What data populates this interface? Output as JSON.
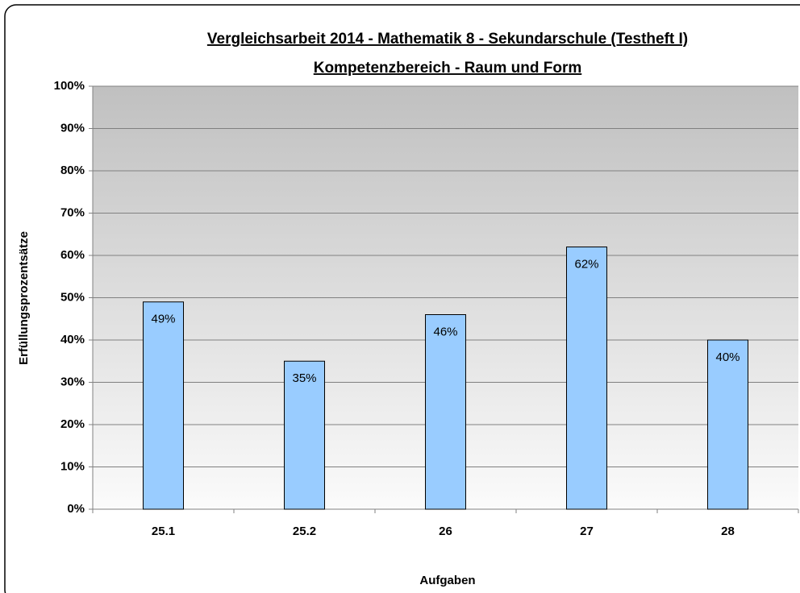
{
  "chart_data": {
    "type": "bar",
    "title": "Vergleichsarbeit 2014 - Mathematik 8 - Sekundarschule (Testheft I)",
    "subtitle": "Kompetenzbereich - Raum und Form",
    "x_label": "Aufgaben",
    "y_label": "Erfüllungsprozentsätze",
    "categories": [
      "25.1",
      "25.2",
      "26",
      "27",
      "28"
    ],
    "values": [
      49,
      35,
      46,
      62,
      40
    ],
    "value_labels": [
      "49%",
      "35%",
      "46%",
      "62%",
      "40%"
    ],
    "color": "#99ccff",
    "ylim": [
      0,
      100
    ],
    "yticks": [
      {
        "value": 0,
        "label": "0%"
      },
      {
        "value": 10,
        "label": "10%"
      },
      {
        "value": 20,
        "label": "20%"
      },
      {
        "value": 30,
        "label": "30%"
      },
      {
        "value": 40,
        "label": "40%"
      },
      {
        "value": 50,
        "label": "50%"
      },
      {
        "value": 60,
        "label": "60%"
      },
      {
        "value": 70,
        "label": "70%"
      },
      {
        "value": 80,
        "label": "80%"
      },
      {
        "value": 90,
        "label": "90%"
      },
      {
        "value": 100,
        "label": "100%"
      }
    ],
    "grid": true
  }
}
